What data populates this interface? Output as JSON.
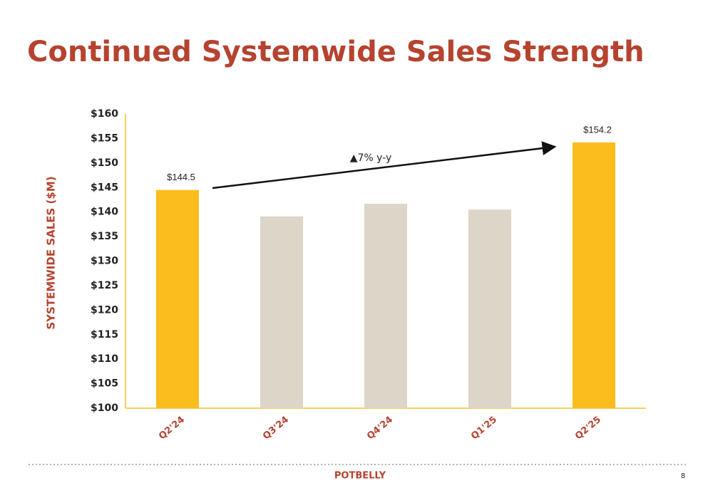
{
  "chart_data": {
    "type": "bar",
    "title": "Continued Systemwide Sales Strength",
    "y_label": "SYSTEMWIDE SALES ($M)",
    "categories": [
      "Q2'24",
      "Q3'24",
      "Q4'24",
      "Q1'25",
      "Q2'25"
    ],
    "values": [
      144.5,
      139.1,
      141.7,
      140.5,
      154.2
    ],
    "value_labels": [
      "$144.5",
      null,
      null,
      null,
      "$154.2"
    ],
    "colors": [
      "#fbbd1e",
      "#dcd5c8",
      "#dcd5c8",
      "#dcd5c8",
      "#fbbd1e"
    ],
    "annotation": "▲7% y-y",
    "ylim": [
      100,
      160
    ],
    "yticks": [
      {
        "value": 100,
        "label": "$100"
      },
      {
        "value": 105,
        "label": "$105"
      },
      {
        "value": 110,
        "label": "$110"
      },
      {
        "value": 115,
        "label": "$115"
      },
      {
        "value": 120,
        "label": "$120"
      },
      {
        "value": 125,
        "label": "$125"
      },
      {
        "value": 130,
        "label": "$130"
      },
      {
        "value": 135,
        "label": "$135"
      },
      {
        "value": 140,
        "label": "$140"
      },
      {
        "value": 145,
        "label": "$145"
      },
      {
        "value": 150,
        "label": "$150"
      },
      {
        "value": 155,
        "label": "$155"
      },
      {
        "value": 160,
        "label": "$160"
      }
    ],
    "grid": false
  },
  "footer": {
    "logo": "POTBELLY",
    "page_number": 8
  }
}
